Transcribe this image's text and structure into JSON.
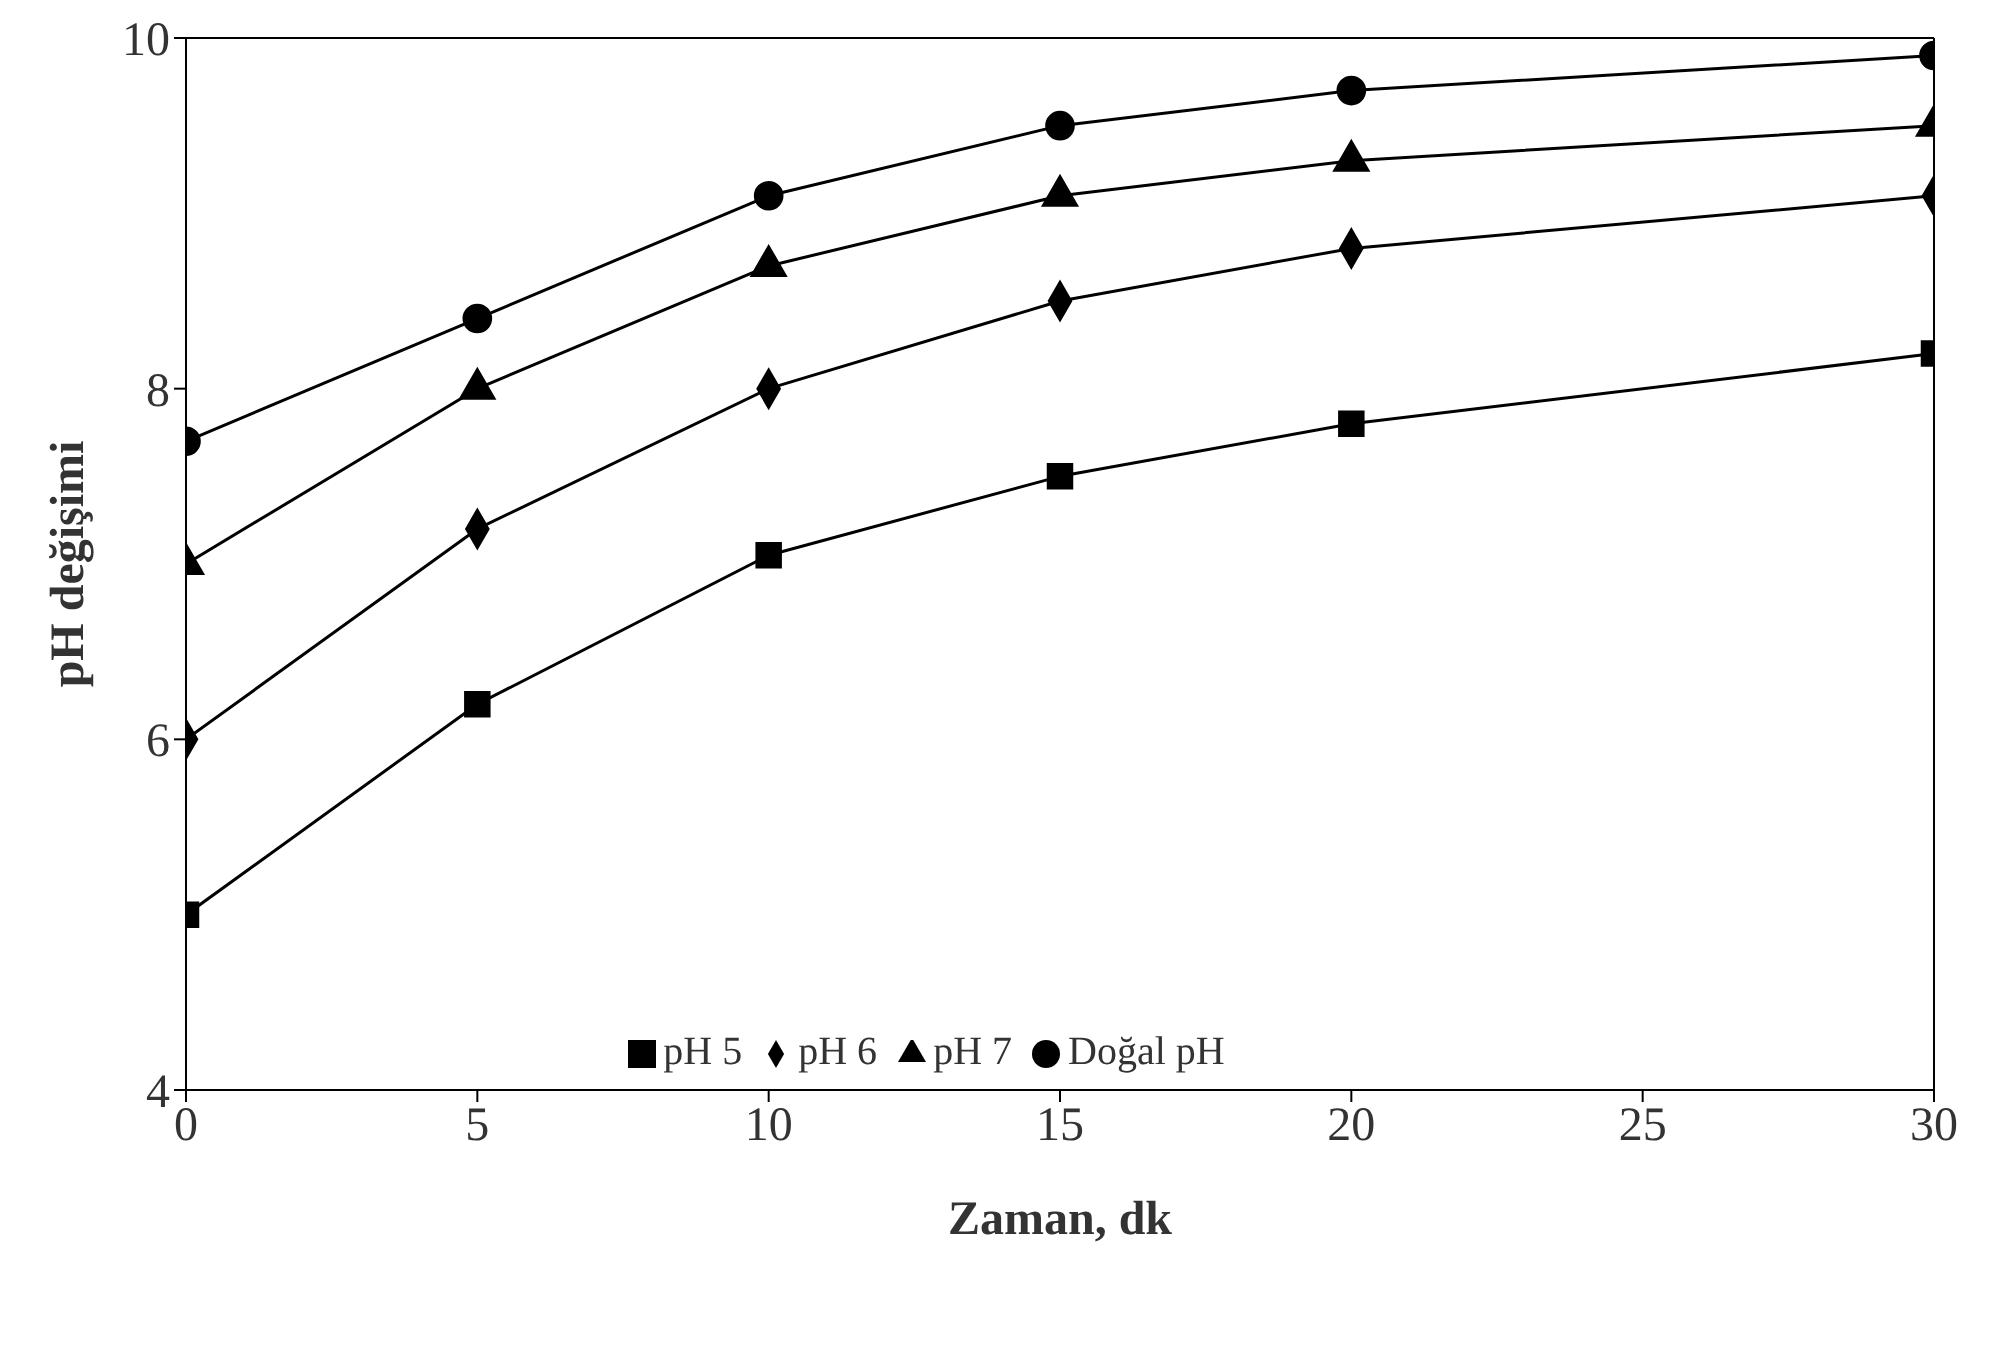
{
  "chart_data": {
    "type": "line",
    "xlabel": "Zaman, dk",
    "ylabel": "pH değişimi",
    "x": [
      0,
      5,
      10,
      15,
      20,
      30
    ],
    "xlim": [
      0,
      30
    ],
    "xticks": [
      0,
      5,
      10,
      15,
      20,
      25,
      30
    ],
    "ylim": [
      4,
      10
    ],
    "yticks": [
      4,
      6,
      8,
      10
    ],
    "grid": false,
    "legend": "bottom",
    "line_style": "solid",
    "series": [
      {
        "name": "pH 5",
        "color": "#000000",
        "marker": "square",
        "values": [
          5.0,
          6.2,
          7.05,
          7.5,
          7.8,
          8.2
        ]
      },
      {
        "name": "pH 6",
        "color": "#000000",
        "marker": "diamond",
        "values": [
          6.0,
          7.2,
          8.0,
          8.5,
          8.8,
          9.1
        ]
      },
      {
        "name": "pH 7",
        "color": "#000000",
        "marker": "triangle",
        "values": [
          7.0,
          8.0,
          8.7,
          9.1,
          9.3,
          9.5
        ]
      },
      {
        "name": "Doğal pH",
        "color": "#000000",
        "marker": "circle",
        "values": [
          7.7,
          8.4,
          9.1,
          9.5,
          9.7,
          9.9
        ]
      }
    ]
  }
}
